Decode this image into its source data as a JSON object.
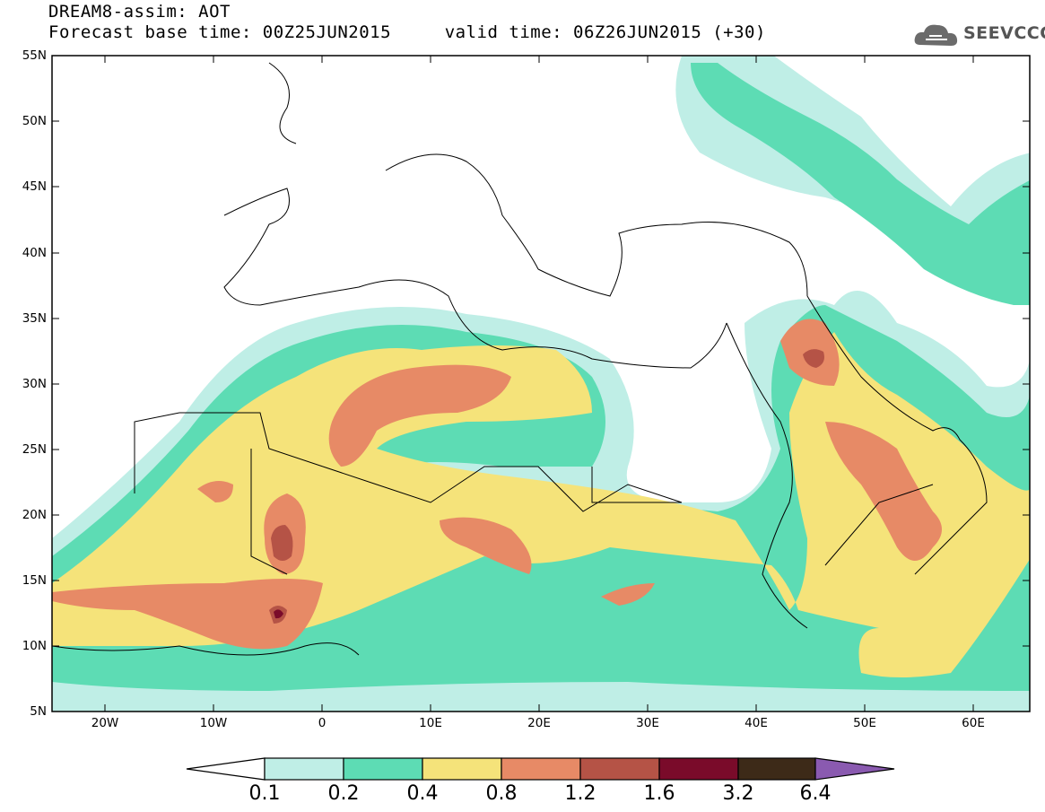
{
  "header": {
    "title_line1": "DREAM8-assim: AOT",
    "title_line2": "Forecast base time: 00Z25JUN2015     valid time: 06Z26JUN2015 (+30)",
    "logo_text": "SEEVCCC"
  },
  "map": {
    "region": "North Africa, Europe and Middle East",
    "lon_range": [
      -25,
      65
    ],
    "lat_range": [
      5,
      55
    ],
    "lat_labels": [
      "55N",
      "50N",
      "45N",
      "40N",
      "35N",
      "30N",
      "25N",
      "20N",
      "15N",
      "10N",
      "5N"
    ],
    "lon_labels": [
      "20W",
      "10W",
      "0",
      "10E",
      "20E",
      "30E",
      "40E",
      "50E",
      "60E"
    ],
    "field": "Aerosol optical thickness (dust)"
  },
  "colorbar": {
    "labels": [
      "0.1",
      "0.2",
      "0.4",
      "0.8",
      "1.2",
      "1.6",
      "3.2",
      "6.4"
    ],
    "colors": [
      "#ffffff",
      "#bfeee6",
      "#5ddcb4",
      "#f5e37a",
      "#e78a66",
      "#b55346",
      "#7a0b2a",
      "#3d2a18",
      "#8a5ab0"
    ]
  }
}
